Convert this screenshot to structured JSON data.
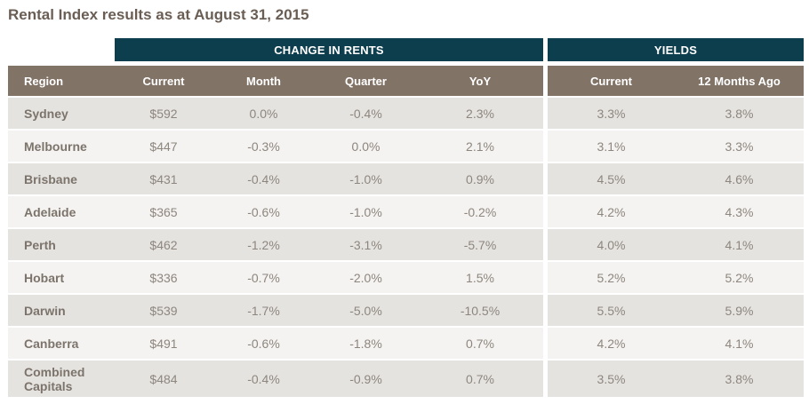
{
  "page": {
    "title": "Rental Index results as at August 31, 2015"
  },
  "table": {
    "section_headers": {
      "change_in_rents": "CHANGE IN RENTS",
      "yields": "YIELDS"
    },
    "columns": {
      "region": "Region",
      "current": "Current",
      "month": "Month",
      "quarter": "Quarter",
      "yoy": "YoY",
      "yield_current": "Current",
      "yield_12mo": "12 Months Ago"
    },
    "rows": [
      {
        "region": "Sydney",
        "current": "$592",
        "month": "0.0%",
        "quarter": "-0.4%",
        "yoy": "2.3%",
        "yield_current": "3.3%",
        "yield_12mo": "3.8%"
      },
      {
        "region": "Melbourne",
        "current": "$447",
        "month": "-0.3%",
        "quarter": "0.0%",
        "yoy": "2.1%",
        "yield_current": "3.1%",
        "yield_12mo": "3.3%"
      },
      {
        "region": "Brisbane",
        "current": "$431",
        "month": "-0.4%",
        "quarter": "-1.0%",
        "yoy": "0.9%",
        "yield_current": "4.5%",
        "yield_12mo": "4.6%"
      },
      {
        "region": "Adelaide",
        "current": "$365",
        "month": "-0.6%",
        "quarter": "-1.0%",
        "yoy": "-0.2%",
        "yield_current": "4.2%",
        "yield_12mo": "4.3%"
      },
      {
        "region": "Perth",
        "current": "$462",
        "month": "-1.2%",
        "quarter": "-3.1%",
        "yoy": "-5.7%",
        "yield_current": "4.0%",
        "yield_12mo": "4.1%"
      },
      {
        "region": "Hobart",
        "current": "$336",
        "month": "-0.7%",
        "quarter": "-2.0%",
        "yoy": "1.5%",
        "yield_current": "5.2%",
        "yield_12mo": "5.2%"
      },
      {
        "region": "Darwin",
        "current": "$539",
        "month": "-1.7%",
        "quarter": "-5.0%",
        "yoy": "-10.5%",
        "yield_current": "5.5%",
        "yield_12mo": "5.9%"
      },
      {
        "region": "Canberra",
        "current": "$491",
        "month": "-0.6%",
        "quarter": "-1.8%",
        "yoy": "0.7%",
        "yield_current": "4.2%",
        "yield_12mo": "4.1%"
      },
      {
        "region": "Combined Capitals",
        "current": "$484",
        "month": "-0.4%",
        "quarter": "-0.9%",
        "yoy": "0.7%",
        "yield_current": "3.5%",
        "yield_12mo": "3.8%"
      }
    ]
  },
  "colors": {
    "band_teal": "#0d3e4e",
    "header_taupe": "#827367",
    "row_dark": "#e5e3e0",
    "row_light": "#f4f3f1",
    "title_text": "#6a5e54",
    "cell_text": "#8d867e"
  },
  "chart_data": {
    "type": "table",
    "title": "Rental Index results as at August 31, 2015",
    "column_groups": [
      "",
      "CHANGE IN RENTS",
      "CHANGE IN RENTS",
      "CHANGE IN RENTS",
      "CHANGE IN RENTS",
      "YIELDS",
      "YIELDS"
    ],
    "columns": [
      "Region",
      "Current",
      "Month",
      "Quarter",
      "YoY",
      "Current",
      "12 Months Ago"
    ],
    "rows": [
      [
        "Sydney",
        "$592",
        "0.0%",
        "-0.4%",
        "2.3%",
        "3.3%",
        "3.8%"
      ],
      [
        "Melbourne",
        "$447",
        "-0.3%",
        "0.0%",
        "2.1%",
        "3.1%",
        "3.3%"
      ],
      [
        "Brisbane",
        "$431",
        "-0.4%",
        "-1.0%",
        "0.9%",
        "4.5%",
        "4.6%"
      ],
      [
        "Adelaide",
        "$365",
        "-0.6%",
        "-1.0%",
        "-0.2%",
        "4.2%",
        "4.3%"
      ],
      [
        "Perth",
        "$462",
        "-1.2%",
        "-3.1%",
        "-5.7%",
        "4.0%",
        "4.1%"
      ],
      [
        "Hobart",
        "$336",
        "-0.7%",
        "-2.0%",
        "1.5%",
        "5.2%",
        "5.2%"
      ],
      [
        "Darwin",
        "$539",
        "-1.7%",
        "-5.0%",
        "-10.5%",
        "5.5%",
        "5.9%"
      ],
      [
        "Canberra",
        "$491",
        "-0.6%",
        "-1.8%",
        "0.7%",
        "4.2%",
        "4.1%"
      ],
      [
        "Combined Capitals",
        "$484",
        "-0.4%",
        "-0.9%",
        "0.7%",
        "3.5%",
        "3.8%"
      ]
    ]
  }
}
